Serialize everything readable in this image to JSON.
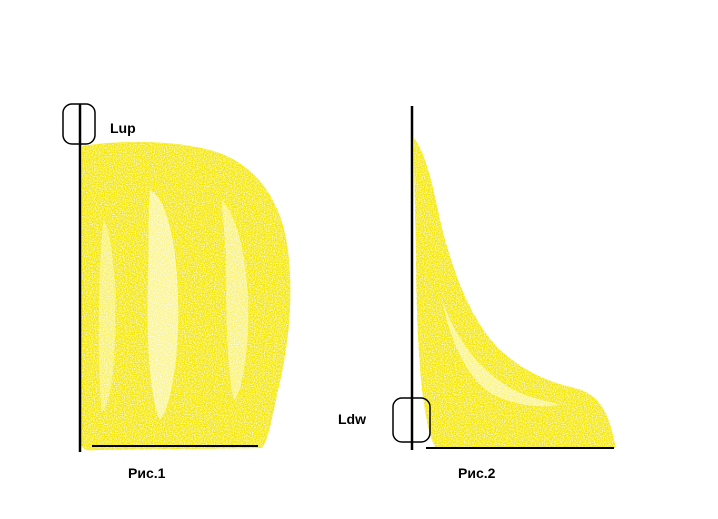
{
  "colors": {
    "fill": "#f4e600",
    "fill_light": "#fff27a",
    "line": "#000000",
    "background": "#ffffff"
  },
  "figure1": {
    "caption": "Рис.1",
    "marker_label": "Lup",
    "shape": "dome-shaped yellow filled region, high at the left axis and curving down on the right"
  },
  "figure2": {
    "caption": "Рис.2",
    "marker_label": "Ldw",
    "shape": "concave yellow filled region decaying from top-left to a low plateau along the bottom"
  }
}
